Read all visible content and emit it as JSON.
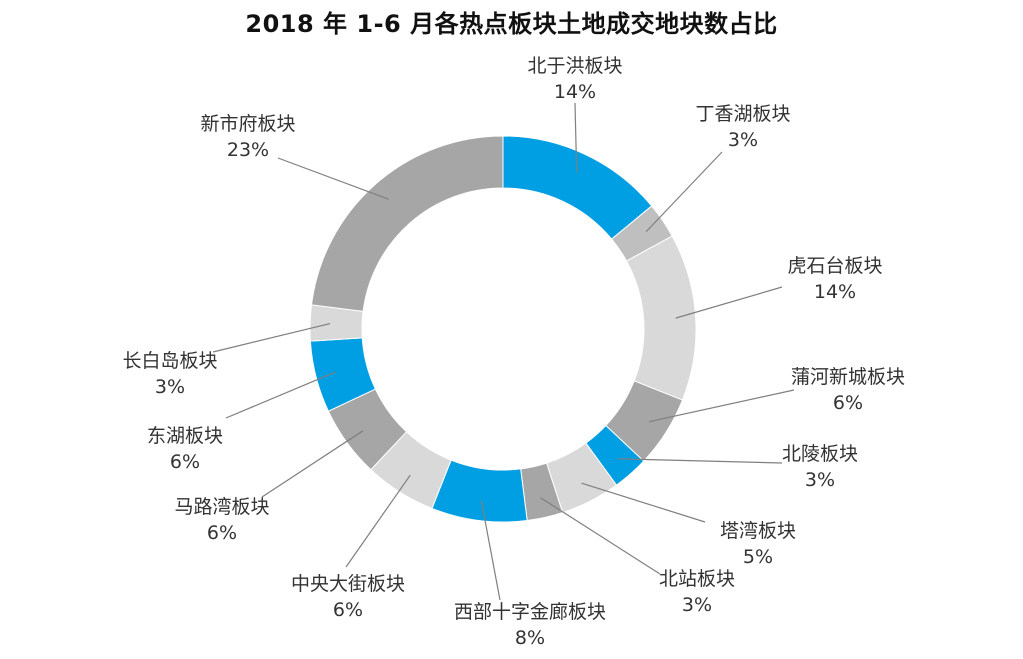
{
  "chart_data": {
    "type": "pie",
    "variant": "donut",
    "title": "2018 年 1-6 月各热点板块土地成交地块数占比",
    "slices": [
      {
        "label": "北于洪板块",
        "value": 14,
        "display": "14%",
        "color": "#009fe3"
      },
      {
        "label": "丁香湖板块",
        "value": 3,
        "display": "3%",
        "color": "#bfbfbf"
      },
      {
        "label": "虎石台板块",
        "value": 14,
        "display": "14%",
        "color": "#d9d9d9"
      },
      {
        "label": "蒲河新城板块",
        "value": 6,
        "display": "6%",
        "color": "#a6a6a6"
      },
      {
        "label": "北陵板块",
        "value": 3,
        "display": "3%",
        "color": "#009fe3"
      },
      {
        "label": "塔湾板块",
        "value": 5,
        "display": "5%",
        "color": "#d9d9d9"
      },
      {
        "label": "北站板块",
        "value": 3,
        "display": "3%",
        "color": "#a6a6a6"
      },
      {
        "label": "西部十字金廊板块",
        "value": 8,
        "display": "8%",
        "color": "#009fe3"
      },
      {
        "label": "中央大街板块",
        "value": 6,
        "display": "6%",
        "color": "#d9d9d9"
      },
      {
        "label": "马路湾板块",
        "value": 6,
        "display": "6%",
        "color": "#a6a6a6"
      },
      {
        "label": "东湖板块",
        "value": 6,
        "display": "6%",
        "color": "#009fe3"
      },
      {
        "label": "长白岛板块",
        "value": 3,
        "display": "3%",
        "color": "#d9d9d9"
      },
      {
        "label": "新市府板块",
        "value": 23,
        "display": "23%",
        "color": "#a6a6a6"
      }
    ]
  }
}
